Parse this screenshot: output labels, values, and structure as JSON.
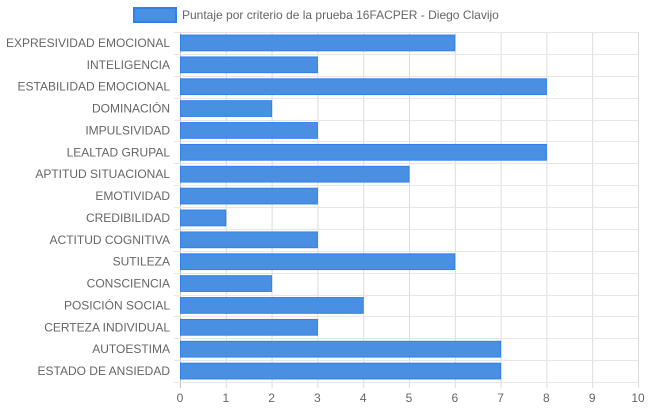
{
  "chart_data": {
    "type": "bar",
    "orientation": "horizontal",
    "categories": [
      "EXPRESIVIDAD EMOCIONAL",
      "INTELIGENCIA",
      "ESTABILIDAD EMOCIONAL",
      "DOMINACIÓN",
      "IMPULSIVIDAD",
      "LEALTAD GRUPAL",
      "APTITUD SITUACIONAL",
      "EMOTIVIDAD",
      "CREDIBILIDAD",
      "ACTITUD COGNITIVA",
      "SUTILEZA",
      "CONSCIENCIA",
      "POSICIÓN SOCIAL",
      "CERTEZA INDIVIDUAL",
      "AUTOESTIMA",
      "ESTADO DE ANSIEDAD"
    ],
    "series": [
      {
        "name": "Puntaje por criterio de la prueba 16FACPER - Diego Clavijo",
        "values": [
          6,
          3,
          8,
          2,
          3,
          8,
          5,
          3,
          1,
          3,
          6,
          2,
          4,
          3,
          7,
          7
        ],
        "color": "#4a90e2",
        "border_color": "#2f80ed"
      }
    ],
    "xlim": [
      0,
      10
    ],
    "x_ticks": [
      "0",
      "1",
      "2",
      "3",
      "4",
      "5",
      "6",
      "7",
      "8",
      "9",
      "10"
    ],
    "grid": true,
    "legend_position": "top"
  }
}
